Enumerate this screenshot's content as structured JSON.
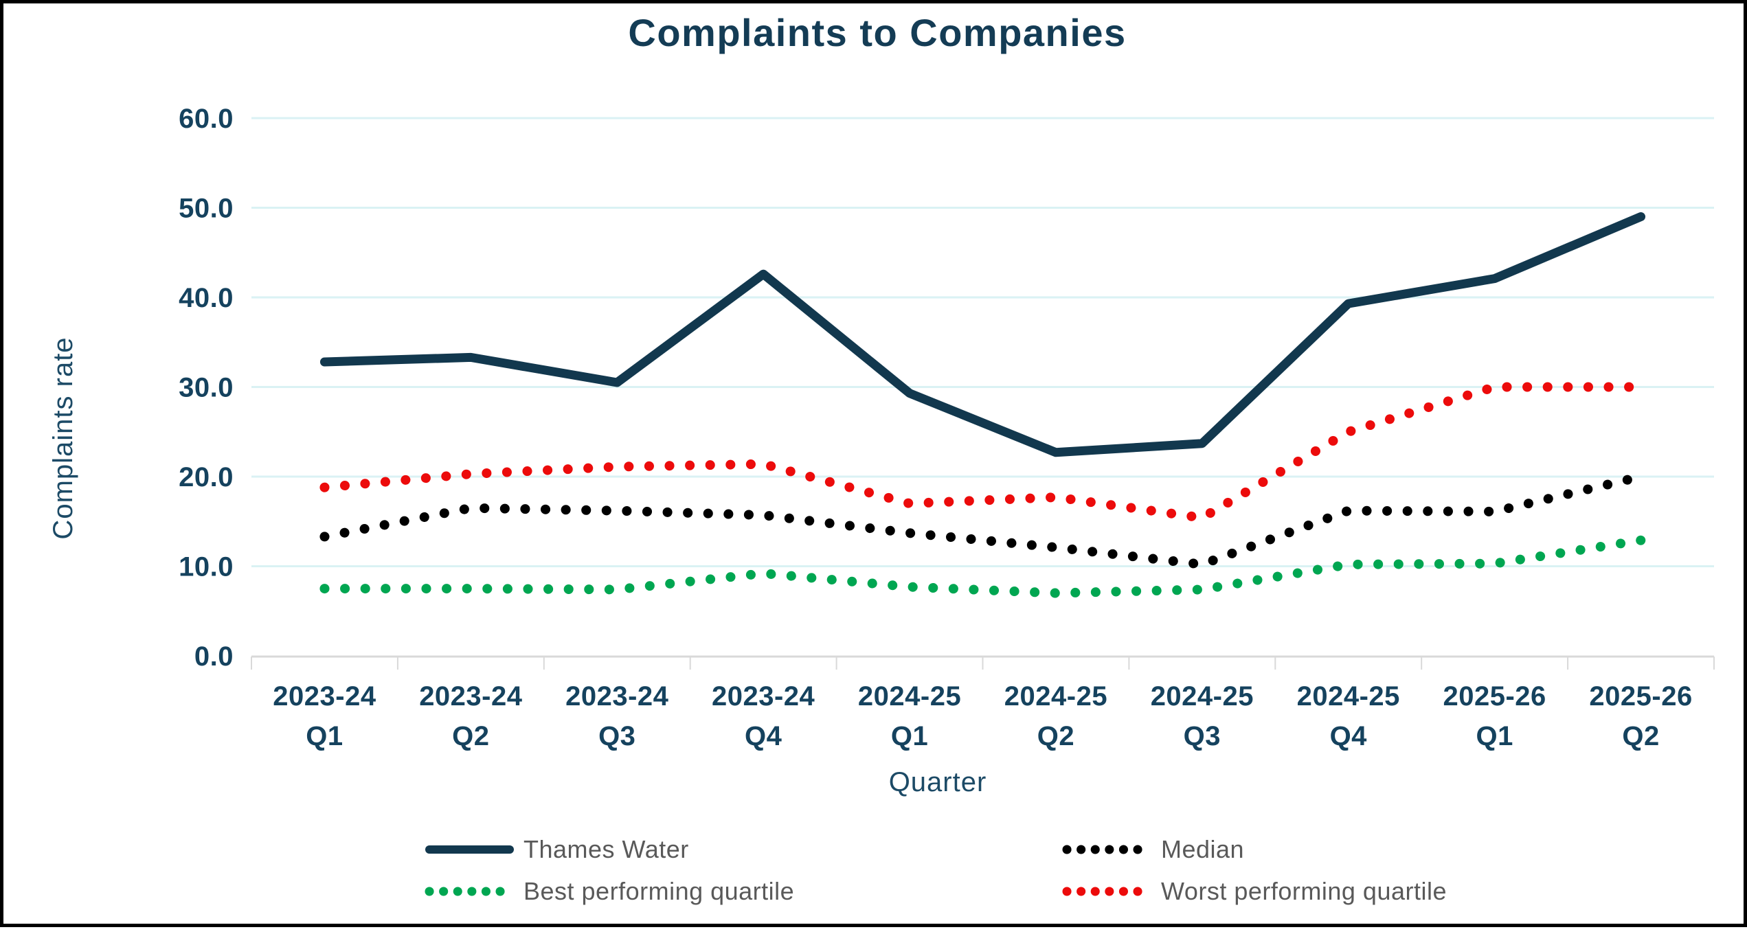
{
  "title": "Complaints to Companies",
  "y_axis": {
    "title": "Complaints rate",
    "min": 0,
    "max": 60,
    "step": 10,
    "tick_labels": [
      "0.0",
      "10.0",
      "20.0",
      "30.0",
      "40.0",
      "50.0",
      "60.0"
    ]
  },
  "x_axis": {
    "title": "Quarter",
    "categories": [
      {
        "year": "2023-24",
        "quarter": "Q1"
      },
      {
        "year": "2023-24",
        "quarter": "Q2"
      },
      {
        "year": "2023-24",
        "quarter": "Q3"
      },
      {
        "year": "2023-24",
        "quarter": "Q4"
      },
      {
        "year": "2024-25",
        "quarter": "Q1"
      },
      {
        "year": "2024-25",
        "quarter": "Q2"
      },
      {
        "year": "2024-25",
        "quarter": "Q3"
      },
      {
        "year": "2024-25",
        "quarter": "Q4"
      },
      {
        "year": "2025-26",
        "quarter": "Q1"
      },
      {
        "year": "2025-26",
        "quarter": "Q2"
      }
    ]
  },
  "legend": [
    {
      "label": "Thames Water",
      "style": "solid",
      "color": "#12384e",
      "col": 0,
      "row": 0
    },
    {
      "label": "Median",
      "style": "dotted",
      "color": "#000000",
      "col": 1,
      "row": 0
    },
    {
      "label": "Best performing quartile",
      "style": "dotted",
      "color": "#00a651",
      "col": 0,
      "row": 1
    },
    {
      "label": "Worst performing quartile",
      "style": "dotted",
      "color": "#ec0b0b",
      "col": 1,
      "row": 1
    }
  ],
  "colors": {
    "title_text": "#143c55",
    "axis_text": "#15425e",
    "gridline": "#daf2f4",
    "axis_line": "#d9d9d9",
    "legend_text": "#595959",
    "background": "#ffffff",
    "border": "#000000"
  },
  "chart_data": {
    "type": "line",
    "title": "Complaints to Companies",
    "xlabel": "Quarter",
    "ylabel": "Complaints rate",
    "ylim": [
      0,
      60
    ],
    "ytick_step": 10,
    "grid": "horizontal",
    "legend_position": "bottom",
    "categories": [
      "2023-24 Q1",
      "2023-24 Q2",
      "2023-24 Q3",
      "2023-24 Q4",
      "2024-25 Q1",
      "2024-25 Q2",
      "2024-25 Q3",
      "2024-25 Q4",
      "2025-26 Q1",
      "2025-26 Q2"
    ],
    "series": [
      {
        "name": "Thames Water",
        "color": "#12384e",
        "style": "solid",
        "values": [
          32.8,
          33.3,
          30.5,
          42.6,
          29.3,
          22.7,
          23.7,
          39.3,
          42.1,
          49.0
        ]
      },
      {
        "name": "Median",
        "color": "#000000",
        "style": "dotted",
        "values": [
          13.3,
          16.5,
          16.2,
          15.7,
          13.7,
          12.1,
          10.2,
          16.2,
          16.1,
          20.0
        ]
      },
      {
        "name": "Best performing quartile",
        "color": "#00a651",
        "style": "dotted",
        "values": [
          7.5,
          7.5,
          7.4,
          9.2,
          7.7,
          7.0,
          7.4,
          10.2,
          10.3,
          12.9
        ]
      },
      {
        "name": "Worst performing quartile",
        "color": "#ec0b0b",
        "style": "dotted",
        "values": [
          18.8,
          20.3,
          21.1,
          21.4,
          17.0,
          17.7,
          15.4,
          25.0,
          30.0,
          30.0
        ]
      }
    ]
  }
}
